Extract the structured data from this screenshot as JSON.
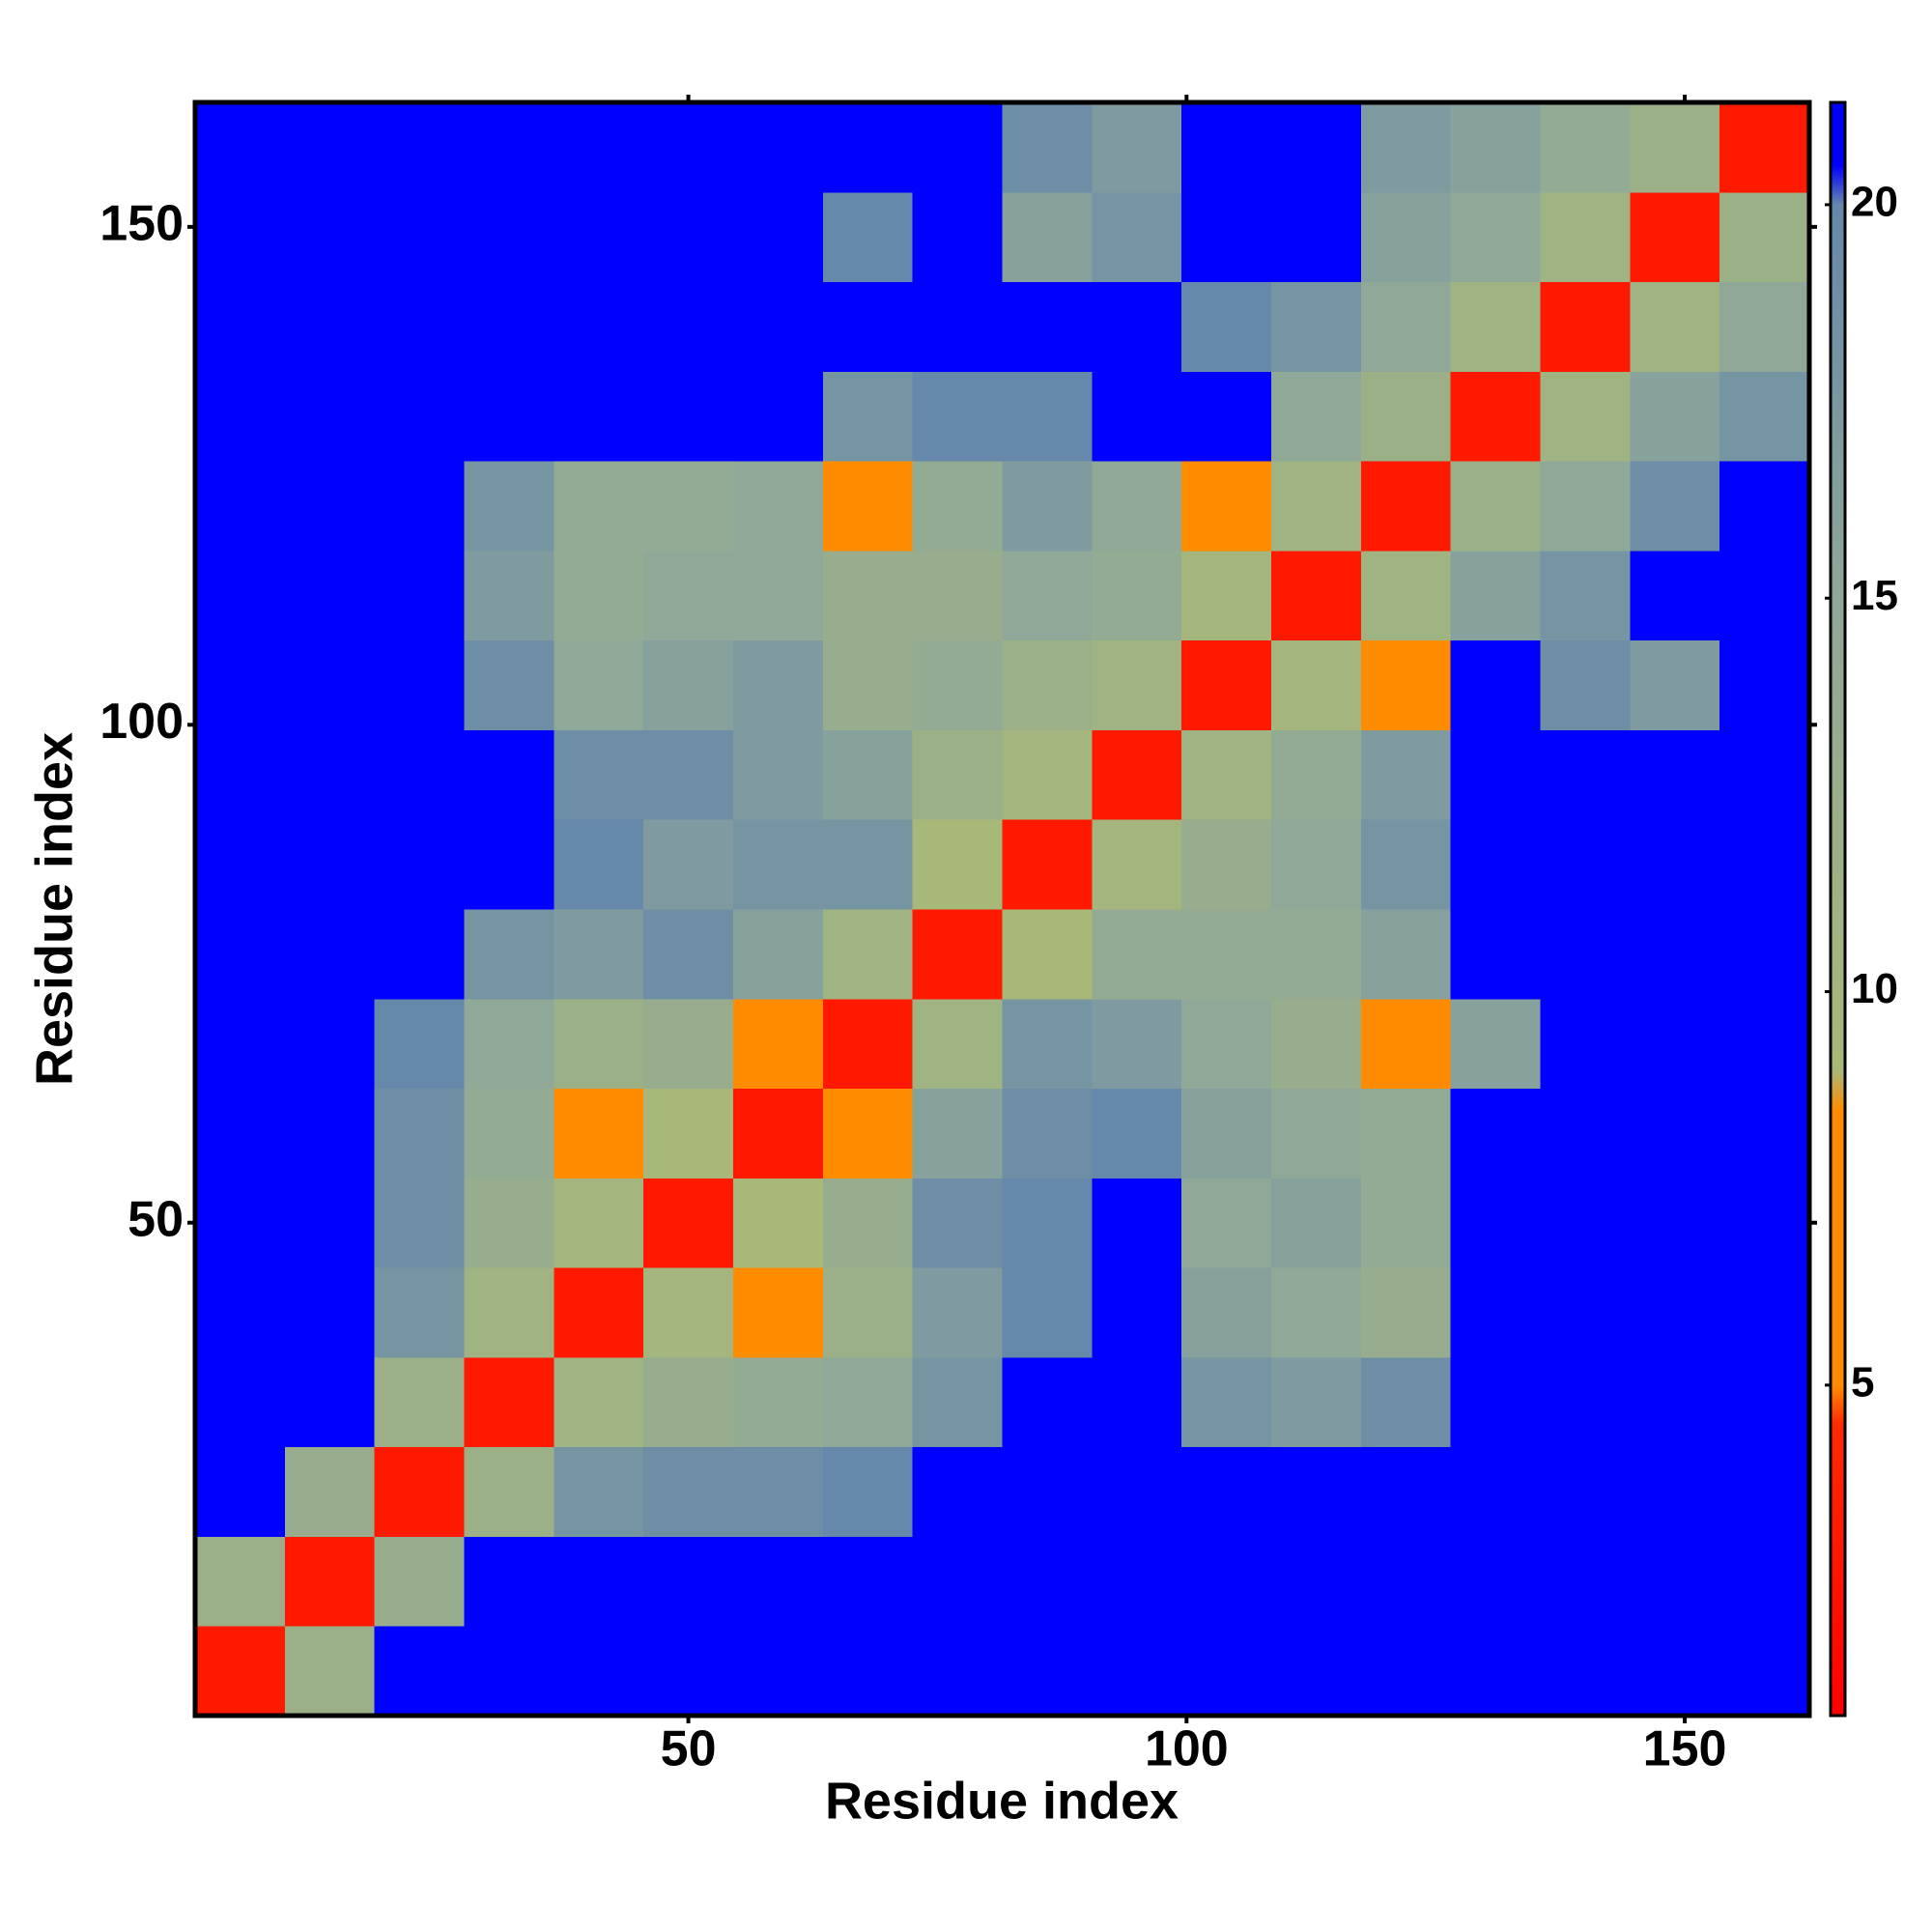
{
  "chart_data": {
    "type": "heatmap",
    "x_label": "Residue index",
    "y_label": "Residue index",
    "xbins": [
      0.5,
      9.5,
      18.5,
      27.5,
      36.5,
      45.5,
      54.5,
      63.5,
      72.5,
      81.5,
      90.5,
      99.5,
      108.5,
      117.5,
      126.5,
      135.5,
      144.5,
      153.5,
      162.5
    ],
    "ybins": [
      0.5,
      9.5,
      18.5,
      27.5,
      36.5,
      45.5,
      54.5,
      63.5,
      72.5,
      81.5,
      90.5,
      99.5,
      108.5,
      117.5,
      126.5,
      135.5,
      144.5,
      153.5,
      162.5
    ],
    "z": [
      [
        3,
        12,
        21,
        21,
        21,
        21,
        21,
        21,
        21,
        21,
        21,
        21,
        21,
        21,
        21,
        21,
        21,
        21
      ],
      [
        12,
        3,
        13,
        21,
        21,
        21,
        21,
        21,
        21,
        21,
        21,
        21,
        21,
        21,
        21,
        21,
        21,
        21
      ],
      [
        21,
        13,
        3,
        12,
        18,
        19,
        19,
        20,
        21,
        21,
        21,
        21,
        21,
        21,
        21,
        21,
        21,
        21
      ],
      [
        21,
        21,
        12,
        3,
        11,
        13,
        14,
        15,
        18,
        21,
        21,
        18,
        17,
        19,
        21,
        21,
        21,
        21
      ],
      [
        21,
        21,
        18,
        11,
        3,
        10,
        8,
        12,
        17,
        20,
        21,
        16,
        15,
        13,
        21,
        21,
        21,
        21
      ],
      [
        21,
        21,
        19,
        13,
        10,
        3,
        9,
        13,
        19,
        20,
        21,
        15,
        16,
        14,
        21,
        21,
        21,
        21
      ],
      [
        21,
        21,
        19,
        14,
        8,
        9,
        3,
        8,
        16,
        19,
        20,
        16,
        15,
        14,
        21,
        21,
        21,
        21
      ],
      [
        21,
        21,
        20,
        15,
        12,
        13,
        8,
        3,
        11,
        18,
        17,
        15,
        13,
        8,
        16,
        21,
        21,
        21
      ],
      [
        21,
        21,
        21,
        18,
        17,
        19,
        16,
        11,
        3,
        9,
        14,
        14,
        14,
        16,
        21,
        21,
        21,
        21
      ],
      [
        21,
        21,
        21,
        21,
        20,
        17,
        18,
        18,
        9,
        3,
        10,
        13,
        15,
        18,
        21,
        21,
        21,
        21
      ],
      [
        21,
        21,
        21,
        21,
        19,
        19,
        17,
        16,
        12,
        10,
        3,
        11,
        14,
        17,
        21,
        21,
        21,
        21
      ],
      [
        21,
        21,
        21,
        19,
        15,
        16,
        17,
        13,
        14,
        12,
        11,
        3,
        10,
        7,
        21,
        19,
        17,
        21
      ],
      [
        21,
        21,
        21,
        17,
        14,
        15,
        15,
        13,
        13,
        15,
        14,
        10,
        3,
        11,
        16,
        18,
        21,
        21
      ],
      [
        21,
        21,
        21,
        18,
        14,
        14,
        15,
        8,
        14,
        17,
        15,
        7,
        11,
        3,
        12,
        15,
        19,
        21
      ],
      [
        21,
        21,
        21,
        21,
        21,
        21,
        21,
        18,
        20,
        20,
        21,
        21,
        15,
        12,
        3,
        11,
        16,
        18
      ],
      [
        21,
        21,
        21,
        21,
        21,
        21,
        21,
        21,
        21,
        21,
        21,
        20,
        18,
        15,
        11,
        3,
        11,
        15
      ],
      [
        21,
        21,
        21,
        21,
        21,
        21,
        21,
        20,
        21,
        16,
        18,
        21,
        21,
        16,
        15,
        11,
        3,
        12
      ],
      [
        21,
        21,
        21,
        21,
        21,
        21,
        21,
        21,
        21,
        19,
        17,
        21,
        21,
        17,
        16,
        14,
        12,
        3
      ]
    ],
    "xlim": [
      0.5,
      162.5
    ],
    "ylim": [
      0.5,
      162.5
    ],
    "xticks": [
      50,
      100,
      150
    ],
    "yticks": [
      50,
      100,
      150
    ],
    "zlim": [
      0.8,
      21.3
    ],
    "zticks": [
      5,
      10,
      15,
      20
    ],
    "colorscale": [
      [
        0.8,
        "#ff0000"
      ],
      [
        4.5,
        "#ff2a00"
      ],
      [
        5,
        "#ff8c00"
      ],
      [
        8.5,
        "#ff8c00"
      ],
      [
        9,
        "#a8b878"
      ],
      [
        15,
        "#8fa898"
      ],
      [
        20,
        "#6688aa"
      ],
      [
        20.5,
        "#0000ff"
      ],
      [
        21.3,
        "#0000ff"
      ]
    ],
    "grid": false
  }
}
